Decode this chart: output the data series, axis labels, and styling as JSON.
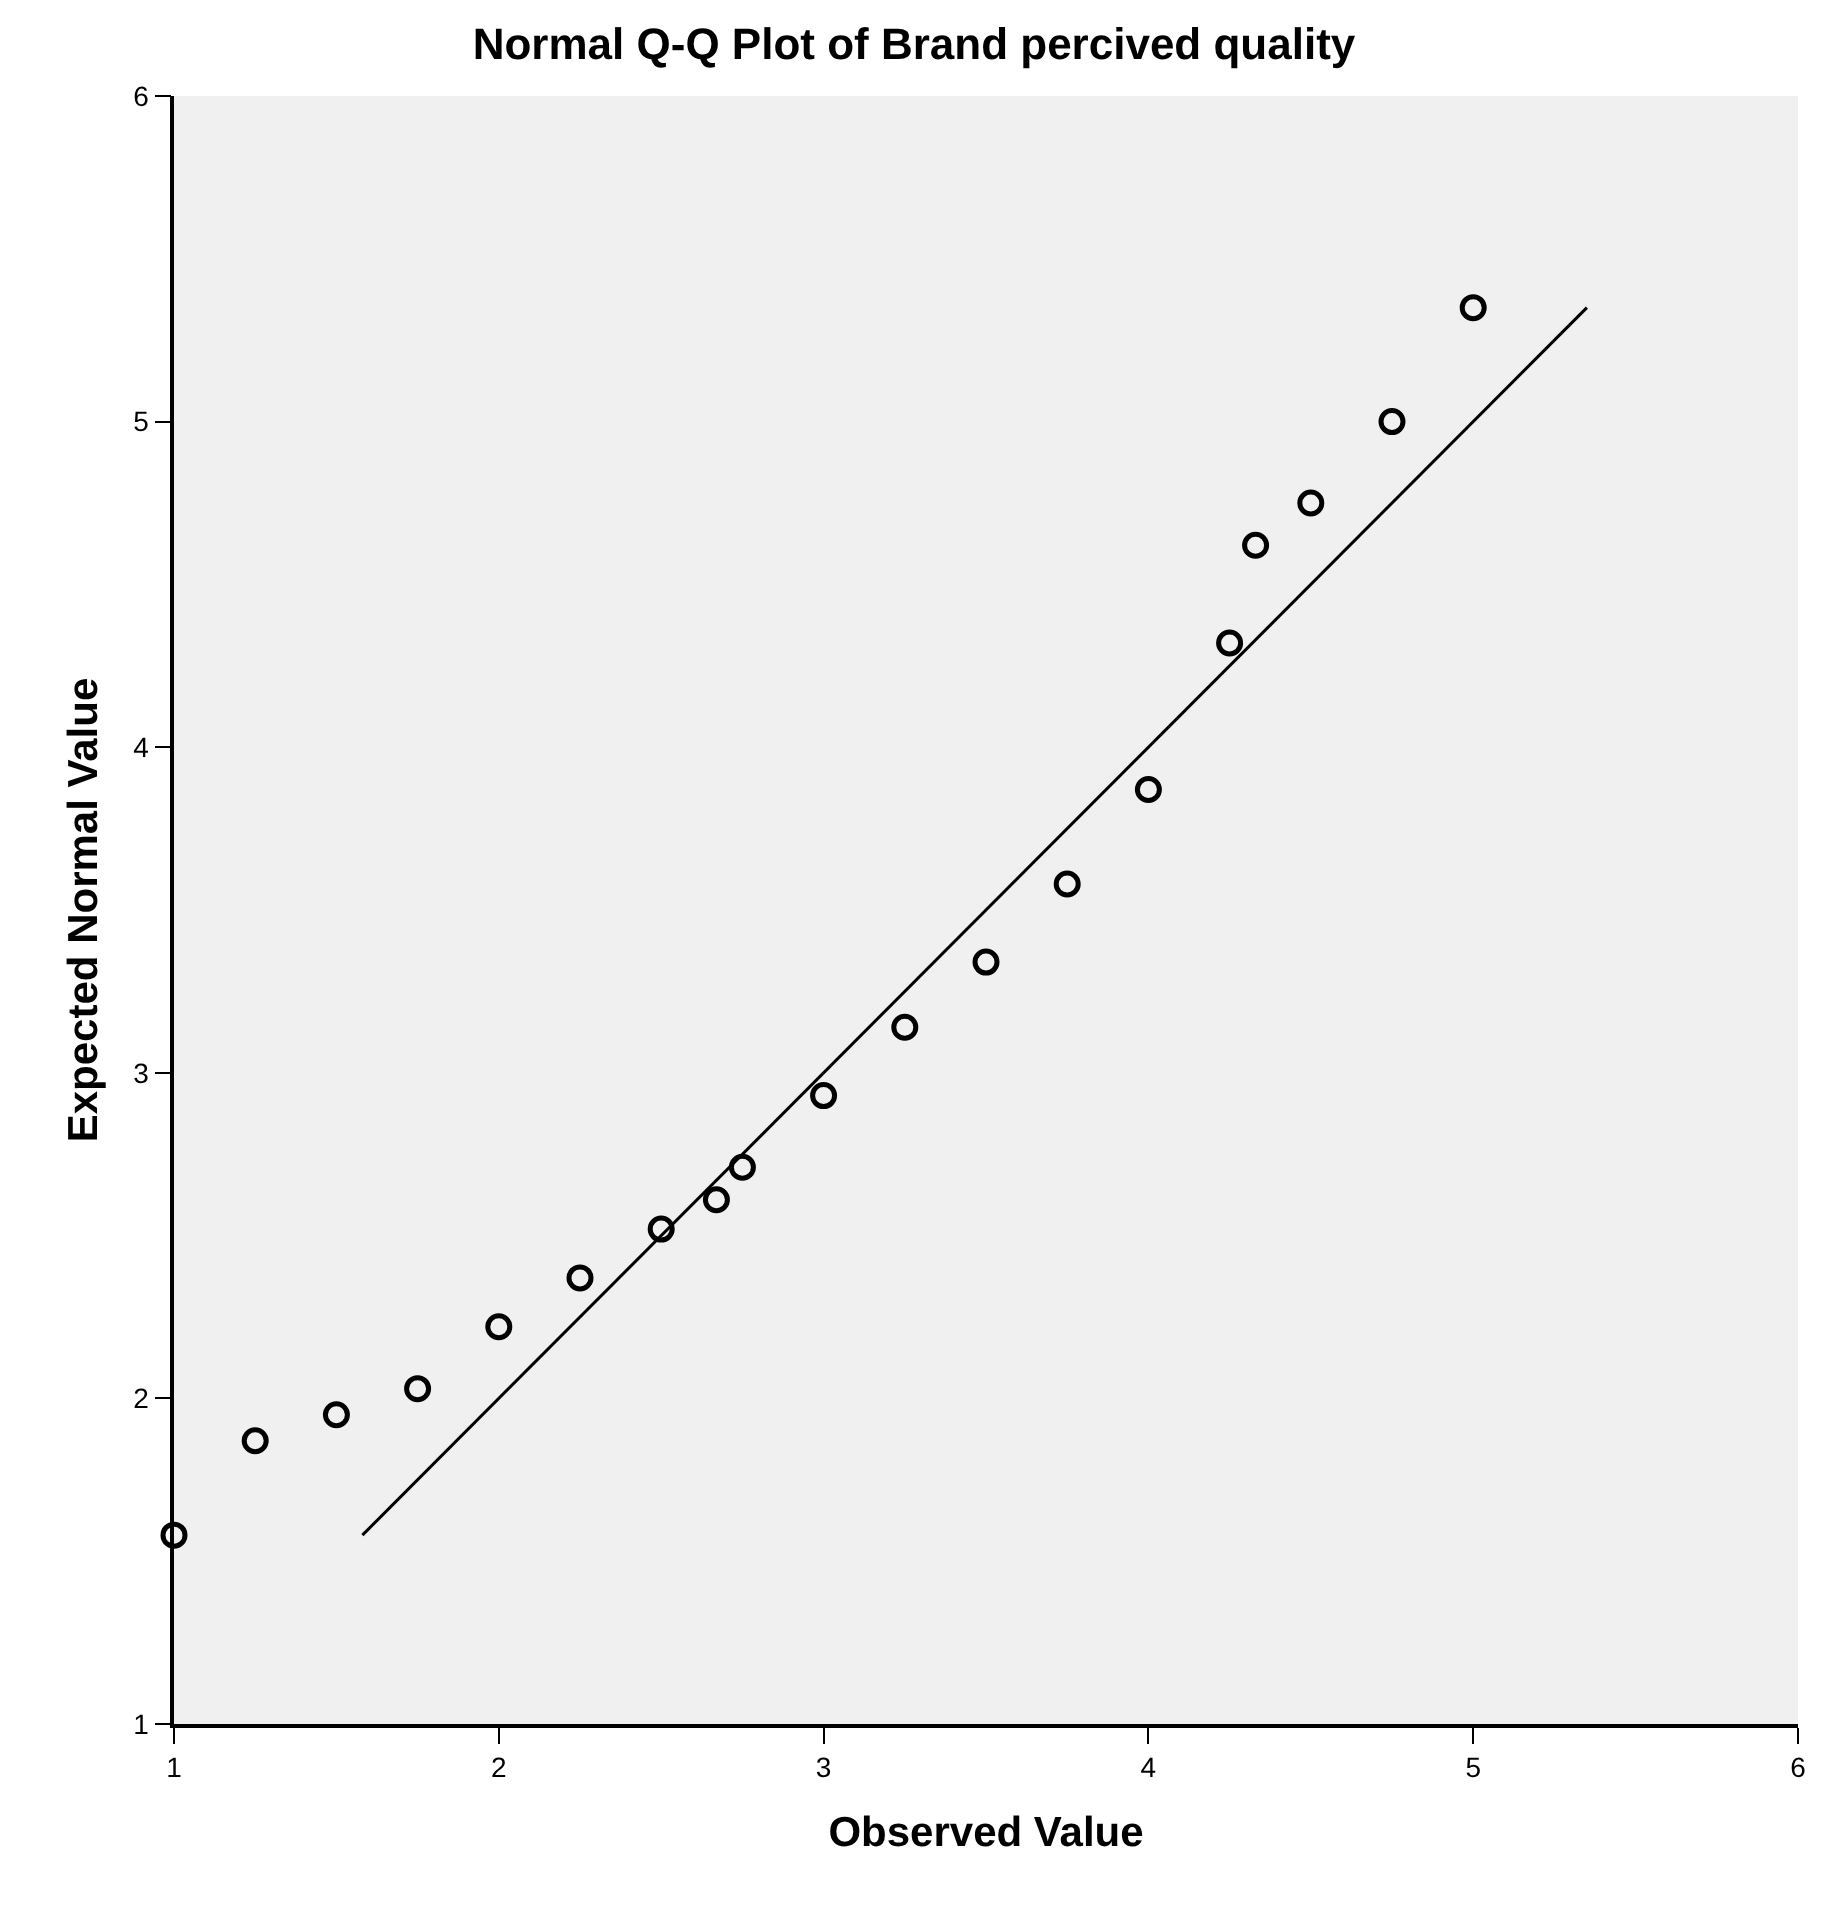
{
  "chart_data": {
    "type": "scatter",
    "title": "Normal Q-Q Plot of Brand percived quality",
    "xlabel": "Observed Value",
    "ylabel": "Expected Normal Value",
    "xlim": [
      1,
      6
    ],
    "xticks": [
      1,
      2,
      3,
      4,
      5,
      6
    ],
    "ylim": [
      1,
      6
    ],
    "yticks": [
      1,
      2,
      3,
      4,
      5,
      6
    ],
    "grid": false,
    "series": [
      {
        "marker": "circle",
        "color": "#000000",
        "x": [
          1.0,
          1.25,
          1.5,
          1.75,
          2.0,
          2.25,
          2.5,
          2.67,
          2.75,
          3.0,
          3.25,
          3.5,
          3.75,
          4.0,
          4.25,
          4.33,
          4.5,
          4.75,
          5.0
        ],
        "values": [
          1.58,
          1.87,
          1.95,
          2.03,
          2.22,
          2.37,
          2.52,
          2.61,
          2.71,
          2.93,
          3.14,
          3.34,
          3.58,
          3.87,
          4.32,
          4.62,
          4.75,
          5.0,
          5.35
        ]
      },
      {
        "type": "line",
        "color": "#000000",
        "x": [
          1.58,
          5.35
        ],
        "values": [
          1.58,
          5.35
        ],
        "line_style": "solid"
      }
    ]
  }
}
